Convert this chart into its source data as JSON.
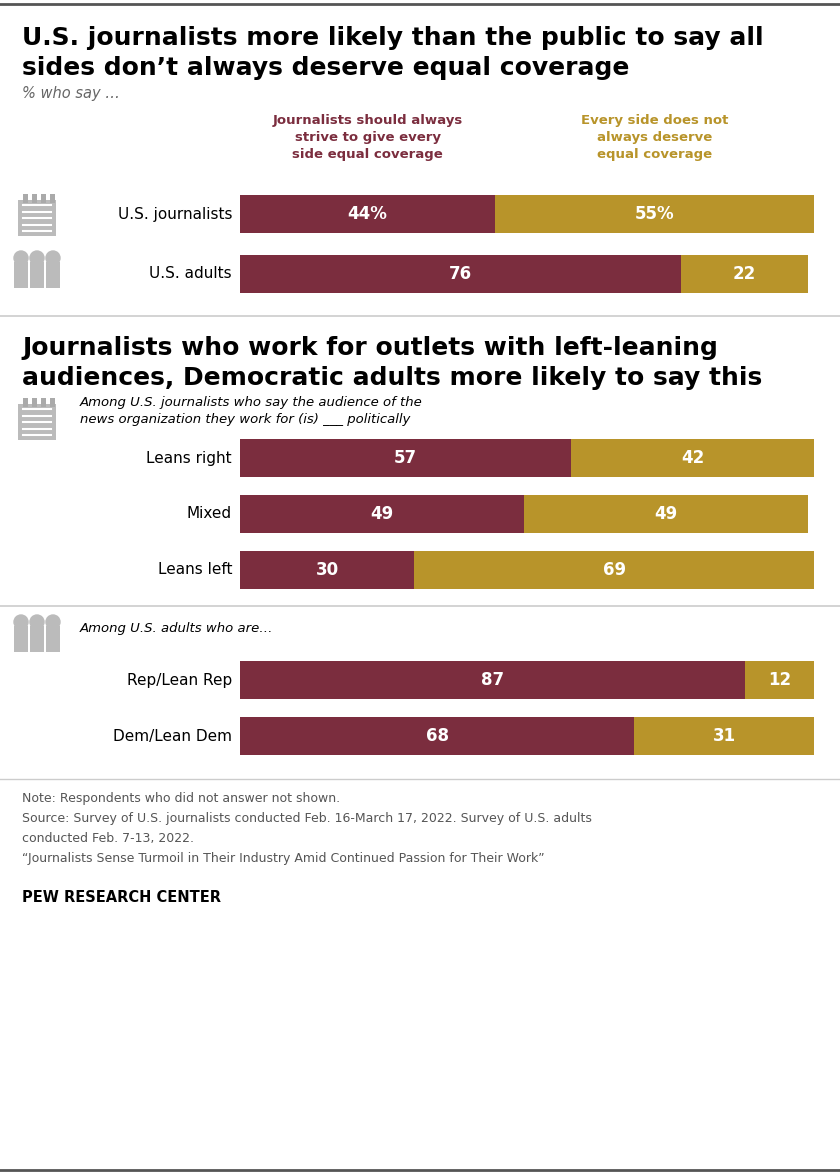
{
  "title1_line1": "U.S. journalists more likely than the public to say all",
  "title1_line2": "sides don’t always deserve equal coverage",
  "subtitle": "% who say …",
  "col_label1": "Journalists should always\nstrive to give every\nside equal coverage",
  "col_label2": "Every side does not\nalways deserve\nequal coverage",
  "col1_color": "#7b2d3e",
  "col2_color": "#b8942a",
  "section1_bars": [
    {
      "label": "U.S. journalists",
      "v1": 44,
      "v2": 55,
      "text1": "44%",
      "text2": "55%"
    },
    {
      "label": "U.S. adults",
      "v1": 76,
      "v2": 22,
      "text1": "76",
      "text2": "22"
    }
  ],
  "title2_line1": "Journalists who work for outlets with left-leaning",
  "title2_line2": "audiences, Democratic adults more likely to say this",
  "journalist_subtitle": "Among U.S. journalists who say the audience of the\nnews organization they work for (is) ___ politically",
  "section2_bars": [
    {
      "label": "Leans right",
      "v1": 57,
      "v2": 42,
      "text1": "57",
      "text2": "42"
    },
    {
      "label": "Mixed",
      "v1": 49,
      "v2": 49,
      "text1": "49",
      "text2": "49"
    },
    {
      "label": "Leans left",
      "v1": 30,
      "v2": 69,
      "text1": "30",
      "text2": "69"
    }
  ],
  "adults_subtitle": "Among U.S. adults who are…",
  "section3_bars": [
    {
      "label": "Rep/Lean Rep",
      "v1": 87,
      "v2": 12,
      "text1": "87",
      "text2": "12"
    },
    {
      "label": "Dem/Lean Dem",
      "v1": 68,
      "v2": 31,
      "text1": "68",
      "text2": "31"
    }
  ],
  "note_line1": "Note: Respondents who did not answer not shown.",
  "note_line2": "Source: Survey of U.S. journalists conducted Feb. 16-March 17, 2022. Survey of U.S. adults",
  "note_line3": "conducted Feb. 7-13, 2022.",
  "note_line4": "“Journalists Sense Turmoil in Their Industry Amid Continued Passion for Their Work”",
  "footer": "PEW RESEARCH CENTER",
  "bg_color": "#ffffff",
  "icon_color": "#bbbbbb",
  "icon_color2": "#aaaaaa",
  "bar_text_color": "#ffffff",
  "note_color": "#555555",
  "divider_color": "#cccccc",
  "top_rule_color": "#555555"
}
